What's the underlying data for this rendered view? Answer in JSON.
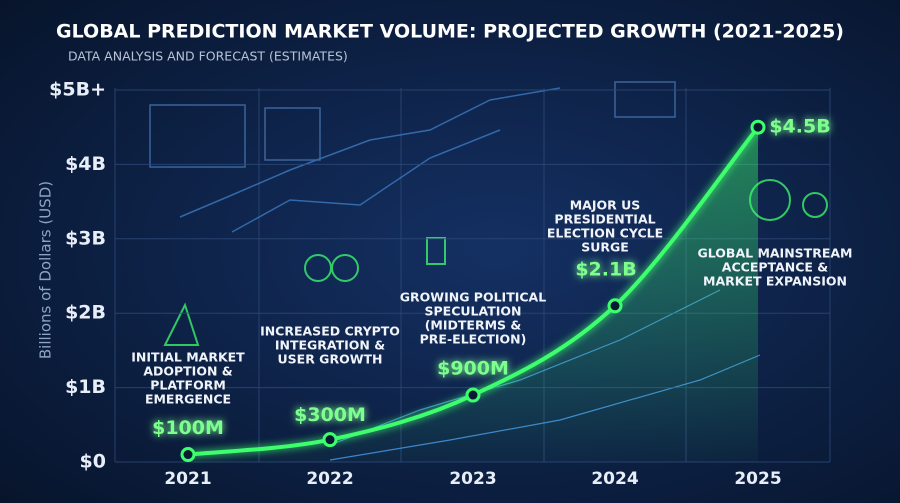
{
  "chart_data": {
    "type": "line",
    "title": "GLOBAL PREDICTION MARKET VOLUME: PROJECTED GROWTH (2021-2025)",
    "subtitle": "DATA ANALYSIS AND FORECAST (ESTIMATES)",
    "y_label": "Billions of Dollars (USD)",
    "categories": [
      "2021",
      "2022",
      "2023",
      "2024",
      "2025"
    ],
    "values": [
      0.1,
      0.3,
      0.9,
      2.1,
      4.5
    ],
    "value_labels": [
      "$100M",
      "$300M",
      "$900M",
      "$2.1B",
      "$4.5B"
    ],
    "color": "#3dff6e",
    "ylim": [
      0,
      5
    ],
    "yticks": [
      {
        "value": 0,
        "label": "$0"
      },
      {
        "value": 1,
        "label": "$1B"
      },
      {
        "value": 2,
        "label": "$2B"
      },
      {
        "value": 3,
        "label": "$3B"
      },
      {
        "value": 4,
        "label": "$4B"
      },
      {
        "value": 5,
        "label": "$5B+"
      }
    ],
    "grid": true,
    "annotations": [
      [
        "INITIAL MARKET",
        "ADOPTION &",
        "PLATFORM",
        "EMERGENCE"
      ],
      [
        "INCREASED CRYPTO",
        "INTEGRATION &",
        "USER GROWTH"
      ],
      [
        "GROWING POLITICAL",
        "SPECULATION",
        "(MIDTERMS &",
        "PRE-ELECTION)"
      ],
      [
        "MAJOR US",
        "PRESIDENTIAL",
        "ELECTION CYCLE",
        "SURGE"
      ],
      [
        "GLOBAL MAINSTREAM",
        "ACCEPTANCE &",
        "MARKET EXPANSION"
      ]
    ]
  }
}
